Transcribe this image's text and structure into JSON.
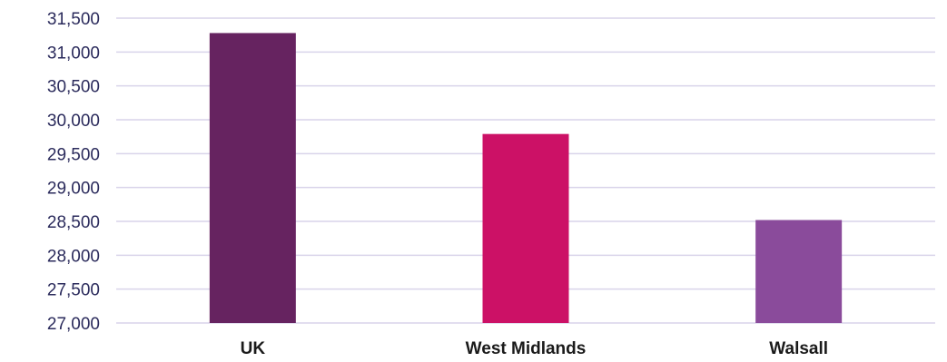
{
  "chart_data": {
    "type": "bar",
    "title": "",
    "xlabel": "",
    "ylabel": "",
    "categories": [
      "UK",
      "West Midlands",
      "Walsall"
    ],
    "values": [
      31280,
      29790,
      28520
    ],
    "colors": [
      "#662360",
      "#cc1166",
      "#8a4b9b"
    ],
    "ylim": [
      27000,
      31500
    ],
    "yticks": [
      27000,
      27500,
      28000,
      28500,
      29000,
      29500,
      30000,
      30500,
      31000,
      31500
    ],
    "ytick_labels": [
      "27,000",
      "27,500",
      "28,000",
      "28,500",
      "29,000",
      "29,500",
      "30,000",
      "30,500",
      "31,000",
      "31,500"
    ],
    "grid": true,
    "legend": "none"
  }
}
